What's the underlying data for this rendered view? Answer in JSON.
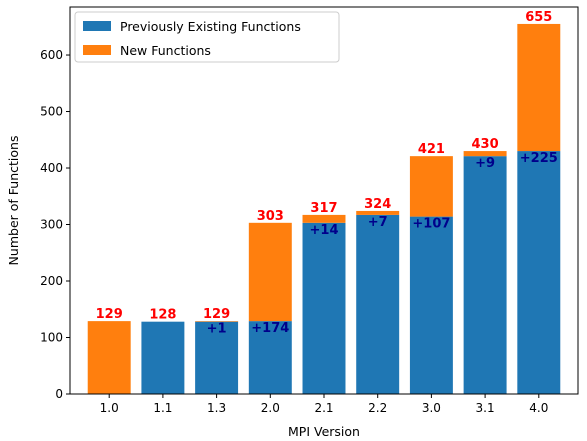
{
  "chart_data": {
    "type": "bar",
    "stacked": true,
    "categories": [
      "1.0",
      "1.1",
      "1.3",
      "2.0",
      "2.1",
      "2.2",
      "3.0",
      "3.1",
      "4.0"
    ],
    "series": [
      {
        "name": "Previously Existing Functions",
        "color": "#1f77b4",
        "values": [
          0,
          128,
          128,
          129,
          303,
          317,
          314,
          421,
          430
        ]
      },
      {
        "name": "New Functions",
        "color": "#ff7f0e",
        "values": [
          129,
          0,
          1,
          174,
          14,
          7,
          107,
          9,
          225
        ]
      }
    ],
    "totals": [
      "129",
      "128",
      "129",
      "303",
      "317",
      "324",
      "421",
      "430",
      "655"
    ],
    "deltas": [
      "",
      "",
      "+1",
      "+174",
      "+14",
      "+7",
      "+107",
      "+9",
      "+225"
    ],
    "xlabel": "MPI Version",
    "ylabel": "Number of Functions",
    "ylim": [
      0,
      685
    ],
    "yticks": [
      0,
      100,
      200,
      300,
      400,
      500,
      600
    ],
    "legend": {
      "placement": "upper-left"
    },
    "grid": false
  }
}
